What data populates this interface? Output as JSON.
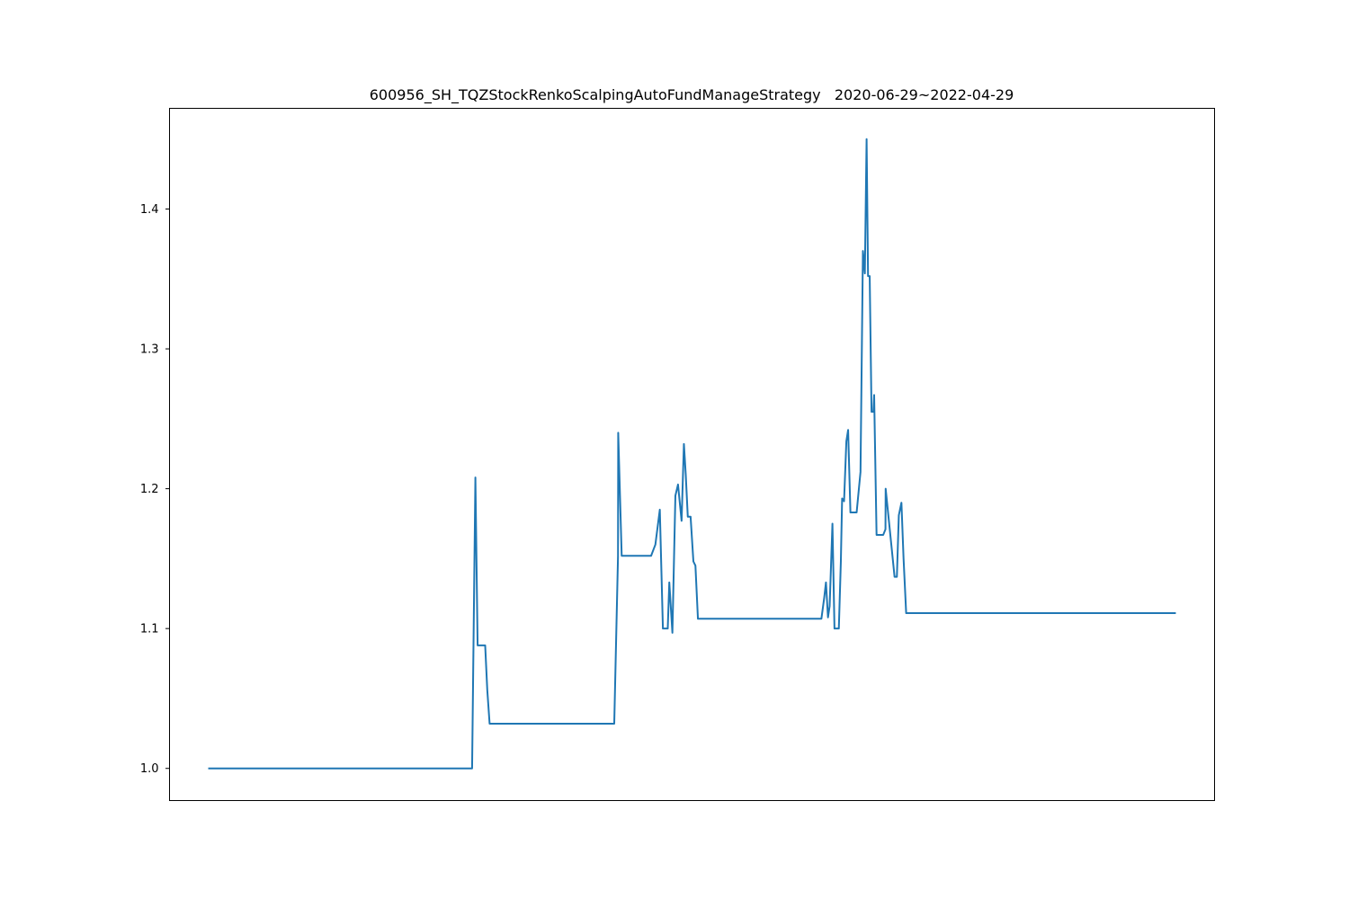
{
  "chart_data": {
    "type": "line",
    "title": "600956_SH_TQZStockRenkoScalpingAutoFundManageStrategy   2020-06-29~2022-04-29",
    "xlabel": "",
    "ylabel": "",
    "x_ticks_visible": false,
    "ylim": [
      0.977,
      1.472
    ],
    "yticks": [
      1.0,
      1.1,
      1.2,
      1.3,
      1.4
    ],
    "ytick_labels": [
      "1.0",
      "1.1",
      "1.2",
      "1.3",
      "1.4"
    ],
    "xlim": [
      -0.04,
      1.04
    ],
    "grid": false,
    "line_color": "#1f77b4",
    "series": [
      {
        "x": [
          0.0,
          0.2727,
          0.2761,
          0.2784,
          0.2862,
          0.2884,
          0.2908,
          0.4196,
          0.4235,
          0.4237,
          0.4273,
          0.4274,
          0.4577,
          0.4621,
          0.4667,
          0.4699,
          0.4746,
          0.4749,
          0.4765,
          0.4797,
          0.4828,
          0.4855,
          0.4892,
          0.4916,
          0.4935,
          0.4956,
          0.4985,
          0.5014,
          0.5035,
          0.5061,
          0.5075,
          0.5096,
          0.5125,
          0.5154,
          0.6337,
          0.6366,
          0.6384,
          0.6405,
          0.6422,
          0.6451,
          0.6472,
          0.6491,
          0.6517,
          0.6538,
          0.6551,
          0.6571,
          0.6595,
          0.6613,
          0.6637,
          0.6652,
          0.6674,
          0.6701,
          0.6741,
          0.6766,
          0.6786,
          0.6804,
          0.6819,
          0.6836,
          0.6855,
          0.6874,
          0.6882,
          0.6907,
          0.6934,
          0.6961,
          0.6976,
          0.6999,
          0.7001,
          0.7093,
          0.7117,
          0.7137,
          0.7164,
          0.7186,
          0.7213,
          0.7237,
          0.7262,
          0.73,
          0.7305,
          1.0
        ],
        "y": [
          1.0,
          1.0,
          1.208,
          1.088,
          1.088,
          1.056,
          1.032,
          1.032,
          1.152,
          1.24,
          1.152,
          1.152,
          1.152,
          1.16,
          1.185,
          1.1,
          1.1,
          1.1,
          1.133,
          1.097,
          1.195,
          1.203,
          1.177,
          1.232,
          1.21,
          1.18,
          1.18,
          1.148,
          1.145,
          1.107,
          1.107,
          1.107,
          1.107,
          1.107,
          1.107,
          1.122,
          1.133,
          1.108,
          1.116,
          1.175,
          1.1,
          1.1,
          1.1,
          1.148,
          1.193,
          1.191,
          1.234,
          1.242,
          1.183,
          1.183,
          1.183,
          1.183,
          1.212,
          1.37,
          1.354,
          1.45,
          1.352,
          1.352,
          1.255,
          1.255,
          1.267,
          1.167,
          1.167,
          1.167,
          1.167,
          1.171,
          1.2,
          1.137,
          1.137,
          1.181,
          1.19,
          1.15,
          1.111,
          1.111,
          1.111,
          1.111,
          1.111,
          1.111
        ]
      }
    ]
  }
}
